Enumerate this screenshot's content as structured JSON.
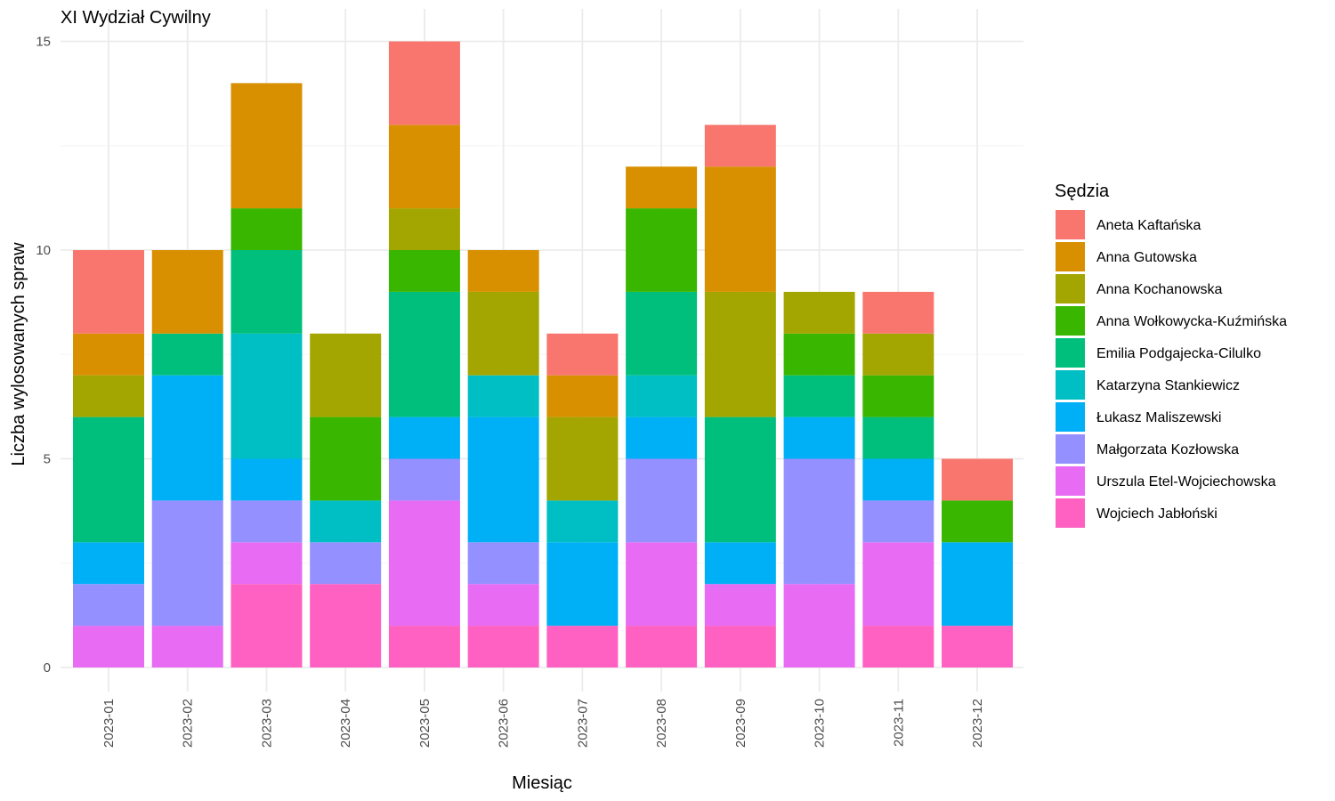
{
  "chart_data": {
    "type": "bar",
    "stacked": true,
    "title": "XI Wydział Cywilny",
    "xlabel": "Miesiąc",
    "ylabel": "Liczba wylosowanych spraw",
    "ylim": [
      0,
      15
    ],
    "yticks": [
      0,
      5,
      10,
      15
    ],
    "grid": true,
    "legend_position": "right",
    "legend_title": "Sędzia",
    "categories": [
      "2023-01",
      "2023-02",
      "2023-03",
      "2023-04",
      "2023-05",
      "2023-06",
      "2023-07",
      "2023-08",
      "2023-09",
      "2023-10",
      "2023-11",
      "2023-12"
    ],
    "series": [
      {
        "name": "Wojciech Jabłoński",
        "color": "#FF61C3",
        "values": [
          0,
          0,
          2,
          2,
          1,
          1,
          1,
          1,
          1,
          0,
          1,
          1
        ]
      },
      {
        "name": "Urszula Etel-Wojciechowska",
        "color": "#E76BF3",
        "values": [
          1,
          1,
          1,
          0,
          3,
          1,
          0,
          2,
          1,
          2,
          2,
          0
        ]
      },
      {
        "name": "Małgorzata Kozłowska",
        "color": "#9590FF",
        "values": [
          1,
          3,
          1,
          1,
          1,
          1,
          0,
          2,
          0,
          3,
          1,
          0
        ]
      },
      {
        "name": "Łukasz Maliszewski",
        "color": "#00B0F6",
        "values": [
          1,
          3,
          1,
          0,
          1,
          3,
          2,
          1,
          1,
          1,
          1,
          2
        ]
      },
      {
        "name": "Katarzyna Stankiewicz",
        "color": "#00BFC4",
        "values": [
          0,
          0,
          3,
          1,
          0,
          1,
          1,
          1,
          0,
          0,
          0,
          0
        ]
      },
      {
        "name": "Emilia Podgajecka-Cilulko",
        "color": "#00BF7D",
        "values": [
          3,
          1,
          2,
          0,
          3,
          0,
          0,
          2,
          3,
          1,
          1,
          0
        ]
      },
      {
        "name": "Anna Wołkowycka-Kuźmińska",
        "color": "#39B600",
        "values": [
          0,
          0,
          1,
          2,
          1,
          0,
          0,
          2,
          0,
          1,
          1,
          1
        ]
      },
      {
        "name": "Anna Kochanowska",
        "color": "#A3A500",
        "values": [
          1,
          0,
          0,
          2,
          1,
          2,
          2,
          0,
          3,
          1,
          1,
          0
        ]
      },
      {
        "name": "Anna Gutowska",
        "color": "#D89000",
        "values": [
          1,
          2,
          3,
          0,
          2,
          1,
          1,
          1,
          3,
          0,
          0,
          0
        ]
      },
      {
        "name": "Aneta Kaftańska",
        "color": "#F8766D",
        "values": [
          2,
          0,
          0,
          0,
          2,
          0,
          1,
          0,
          1,
          0,
          1,
          1
        ]
      }
    ],
    "legend_order": [
      "Aneta Kaftańska",
      "Anna Gutowska",
      "Anna Kochanowska",
      "Anna Wołkowycka-Kuźmińska",
      "Emilia Podgajecka-Cilulko",
      "Katarzyna Stankiewicz",
      "Łukasz Maliszewski",
      "Małgorzata Kozłowska",
      "Urszula Etel-Wojciechowska",
      "Wojciech Jabłoński"
    ]
  }
}
